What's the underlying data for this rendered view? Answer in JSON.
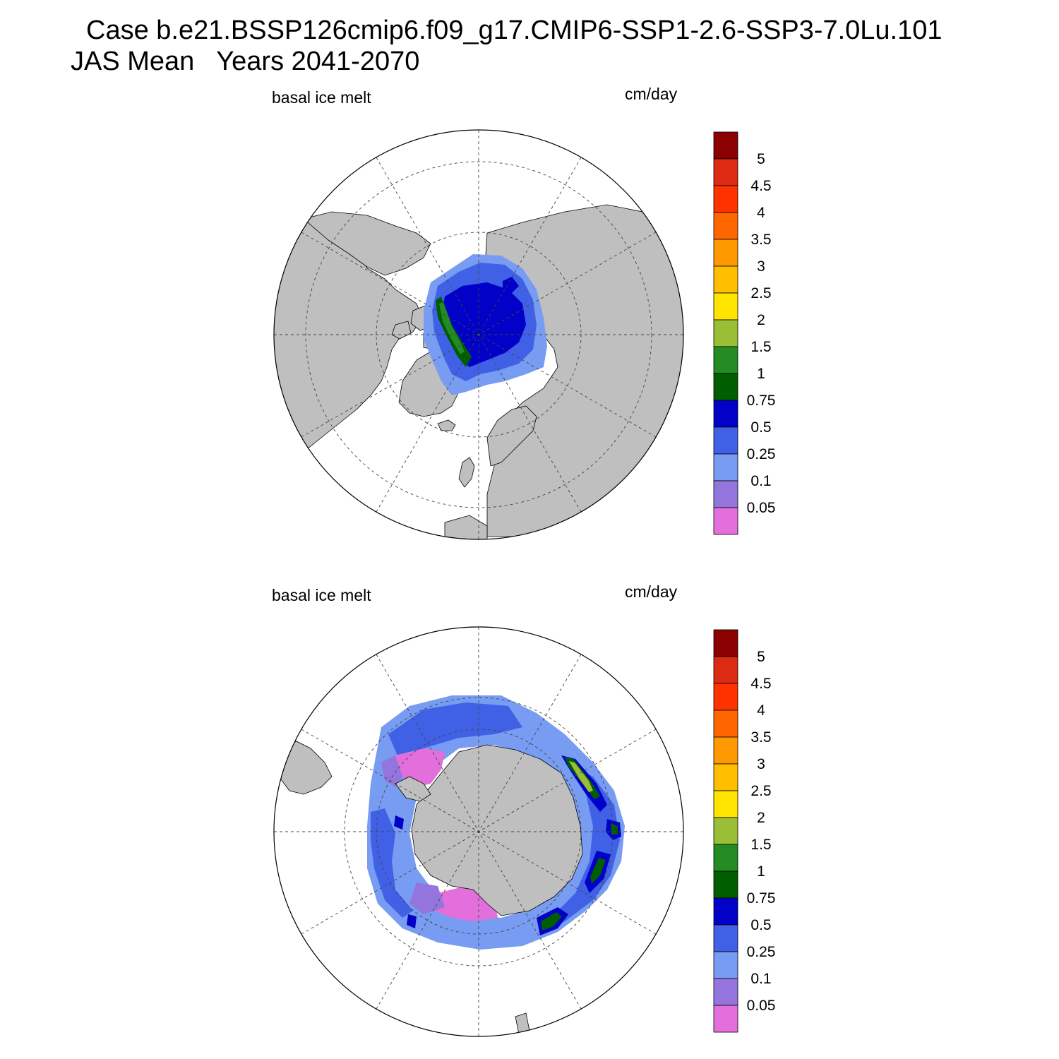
{
  "title": {
    "line1": "Case b.e21.BSSP126cmip6.f09_g17.CMIP6-SSP1-2.6-SSP3-7.0Lu.101",
    "line2": "JAS Mean   Years 2041-2070"
  },
  "panels": [
    {
      "hemisphere": "north",
      "left_label": "basal ice melt",
      "right_label": "cm/day"
    },
    {
      "hemisphere": "south",
      "left_label": "basal ice melt",
      "right_label": "cm/day"
    }
  ],
  "colorbar": {
    "levels": [
      "0.05",
      "0.1",
      "0.25",
      "0.5",
      "0.75",
      "1",
      "1.5",
      "2",
      "2.5",
      "3",
      "3.5",
      "4",
      "4.5",
      "5"
    ],
    "colors": [
      "#e36fdc",
      "#9375dd",
      "#779cf2",
      "#4061e6",
      "#0101c8",
      "#005e00",
      "#228b22",
      "#9abf37",
      "#ffe400",
      "#ffbf00",
      "#ff9900",
      "#ff6600",
      "#ff3300",
      "#dd2a12",
      "#8b0000"
    ]
  },
  "colors": {
    "land": "#bfbfbf",
    "ocean": "#ffffff",
    "outline": "#000000"
  }
}
